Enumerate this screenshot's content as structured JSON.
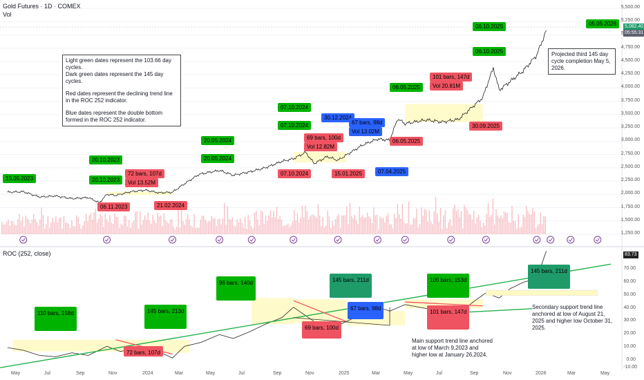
{
  "header": {
    "title": "Gold Futures · 1D · COMEX",
    "vol_label": "Vol",
    "roc_label": "ROC (252, close)"
  },
  "price_axis": {
    "labels": [
      "5,500.00",
      "5,250.00",
      "5,000.00",
      "4,750.00",
      "4,500.00",
      "4,250.00",
      "4,000.00",
      "3,750.00",
      "3,500.00",
      "3,250.00",
      "3,000.00",
      "2,750.00",
      "2,500.00",
      "2,250.00",
      "2,000.00",
      "1,750.00",
      "1,500.00",
      "1,250.00"
    ],
    "current_price": "5,082.40",
    "current_time": "05:55:31"
  },
  "roc_axis": {
    "labels": [
      "80.00",
      "70.00",
      "60.00",
      "50.00",
      "40.00",
      "30.00",
      "20.00",
      "10.00",
      "0.00",
      "-10.00"
    ],
    "current": "83.73"
  },
  "time_axis": {
    "labels": [
      "May",
      "Jul",
      "Sep",
      "Nov",
      "2024",
      "Mar",
      "May",
      "Jul",
      "Sep",
      "Nov",
      "2025",
      "Mar",
      "May",
      "Jul",
      "Sep",
      "Nov",
      "2026",
      "Mar",
      "May"
    ]
  },
  "price_tags": [
    {
      "text": "15.05.2023",
      "style": "lg"
    },
    {
      "text": "20.10.2023",
      "style": "lg"
    },
    {
      "text": "20.10.2023",
      "style": "lg"
    },
    {
      "text": "06.11.2023",
      "style": "red"
    },
    {
      "text": "72 bars, 107d",
      "style": "red"
    },
    {
      "text": "Vol 13.52M",
      "style": "red"
    },
    {
      "text": "21.02.2024",
      "style": "red"
    },
    {
      "text": "20.05.2024",
      "style": "lg"
    },
    {
      "text": "20.05.2024",
      "style": "lg"
    },
    {
      "text": "07.10.2024",
      "style": "lg"
    },
    {
      "text": "07.10.2024",
      "style": "lg"
    },
    {
      "text": "69 bars, 100d",
      "style": "red"
    },
    {
      "text": "Vol 12.82M",
      "style": "red"
    },
    {
      "text": "07.10.2024",
      "style": "red"
    },
    {
      "text": "30.12.2024",
      "style": "blue"
    },
    {
      "text": "67 bars, 98d",
      "style": "blue"
    },
    {
      "text": "Vol 13.02M",
      "style": "blue"
    },
    {
      "text": "15.01.2025",
      "style": "red"
    },
    {
      "text": "07.04.2025",
      "style": "blue"
    },
    {
      "text": "06.05.2025",
      "style": "lg"
    },
    {
      "text": "06.05.2025",
      "style": "red"
    },
    {
      "text": "101 bars, 147d",
      "style": "red"
    },
    {
      "text": "Vol 20.81M",
      "style": "red"
    },
    {
      "text": "06.10.2025",
      "style": "lg"
    },
    {
      "text": "06.10.2025",
      "style": "lg"
    },
    {
      "text": "30.09.2025",
      "style": "red"
    },
    {
      "text": "05.05.2026",
      "style": "lg"
    }
  ],
  "roc_tags": [
    {
      "text": "110 bars, 158d",
      "style": "lg"
    },
    {
      "text": "145 bars, 213d",
      "style": "lg"
    },
    {
      "text": "72 bars, 107d",
      "style": "red"
    },
    {
      "text": "96 bars, 140d",
      "style": "lg"
    },
    {
      "text": "145 bars, 211d",
      "style": "dg"
    },
    {
      "text": "69 bars, 100d",
      "style": "red"
    },
    {
      "text": "67 bars, 98d",
      "style": "blue"
    },
    {
      "text": "105 bars, 153d",
      "style": "lg"
    },
    {
      "text": "101 bars, 147d",
      "style": "red"
    },
    {
      "text": "145 bars, 211d",
      "style": "dg"
    }
  ],
  "notes": {
    "legend_box": [
      "Light green dates represent the 103.66 day cycles.",
      "Dark green dates represent the 145 day cycles.",
      "",
      "Red dates represent the declining trend line in the ROC 252 indicator.",
      "",
      "Blue dates represent the double bottom formed in the ROC 252 indicator."
    ],
    "projection": "Projected third 145 day cycle completion May 5, 2026.",
    "main_support": "Main support trend line anchored at low of March 9,2023 and higher low at January 26,2024.",
    "secondary_support": "Secondary support trend line anchored at low of August 21, 2025 and  higher low October 31, 2025."
  },
  "colors": {
    "light_green": "#00b300",
    "dark_green": "#1f9b6a",
    "red": "#ef5361",
    "blue": "#2962ff",
    "trend_green": "#22b14c",
    "highlight": "#fff9c4",
    "volume": "#f4aab0"
  },
  "chart_data": [
    {
      "type": "line",
      "title": "Gold Futures · 1D · COMEX",
      "xlabel": "",
      "ylabel": "",
      "ylim": [
        1150,
        5600
      ],
      "x": [
        "2023-04-15",
        "2023-05-15",
        "2023-06-15",
        "2023-07-15",
        "2023-08-15",
        "2023-09-15",
        "2023-10-06",
        "2023-10-20",
        "2023-11-06",
        "2023-12-04",
        "2024-01-01",
        "2024-01-26",
        "2024-02-21",
        "2024-03-15",
        "2024-04-12",
        "2024-05-20",
        "2024-06-15",
        "2024-07-15",
        "2024-08-15",
        "2024-09-15",
        "2024-10-07",
        "2024-10-30",
        "2024-11-15",
        "2024-12-10",
        "2024-12-30",
        "2025-01-15",
        "2025-02-15",
        "2025-03-15",
        "2025-04-07",
        "2025-04-22",
        "2025-05-06",
        "2025-06-15",
        "2025-07-15",
        "2025-08-15",
        "2025-09-30",
        "2025-10-06",
        "2025-10-20",
        "2025-10-31",
        "2025-11-20",
        "2025-12-15",
        "2026-01-10",
        "2026-01-28"
      ],
      "y": [
        2040,
        2050,
        1950,
        1970,
        1920,
        1940,
        1840,
        2000,
        1980,
        2050,
        2080,
        2030,
        2040,
        2200,
        2380,
        2450,
        2360,
        2420,
        2500,
        2620,
        2670,
        2790,
        2580,
        2710,
        2640,
        2740,
        2930,
        3040,
        3020,
        3420,
        3330,
        3400,
        3360,
        3410,
        3820,
        4000,
        4380,
        3960,
        4120,
        4320,
        4620,
        5082
      ],
      "volume_range": [
        1250,
        2250
      ],
      "annotations": {
        "current_price": 5082.4,
        "highlight_ranges": [
          [
            "2023-10-20",
            "2024-02-21"
          ],
          [
            "2024-10-07",
            "2025-01-15"
          ],
          [
            "2025-05-06",
            "2025-09-30"
          ]
        ]
      }
    },
    {
      "type": "line",
      "title": "ROC (252, close)",
      "xlabel": "",
      "ylabel": "",
      "ylim": [
        -10,
        85
      ],
      "x": [
        "2023-04-15",
        "2023-05-15",
        "2023-06-15",
        "2023-07-15",
        "2023-08-15",
        "2023-09-15",
        "2023-10-20",
        "2023-11-15",
        "2023-12-15",
        "2024-01-26",
        "2024-02-21",
        "2024-03-15",
        "2024-04-15",
        "2024-05-20",
        "2024-06-15",
        "2024-07-15",
        "2024-08-15",
        "2024-09-15",
        "2024-10-07",
        "2024-11-15",
        "2024-12-30",
        "2025-01-15",
        "2025-02-15",
        "2025-03-15",
        "2025-04-07",
        "2025-05-06",
        "2025-06-15",
        "2025-07-15",
        "2025-08-21",
        "2025-09-15",
        "2025-10-06",
        "2025-10-31",
        "2025-11-20",
        "2025-12-15",
        "2026-01-10",
        "2026-01-28"
      ],
      "y": [
        10,
        8,
        4,
        3,
        6,
        4,
        11,
        7,
        10,
        7,
        2,
        11,
        14,
        20,
        17,
        22,
        28,
        33,
        41,
        30,
        27,
        30,
        36,
        41,
        38,
        43,
        40,
        37,
        38,
        46,
        52,
        48,
        55,
        60,
        63,
        84
      ],
      "series": [
        {
          "name": "",
          "kind": "support",
          "from": [
            "2023-03-09",
            -7
          ],
          "to": [
            "2026-05-30",
            74
          ]
        },
        {
          "name": "",
          "kind": "support",
          "from": [
            "2025-08-21",
            37
          ],
          "to": [
            "2026-05-30",
            43
          ]
        }
      ]
    }
  ]
}
